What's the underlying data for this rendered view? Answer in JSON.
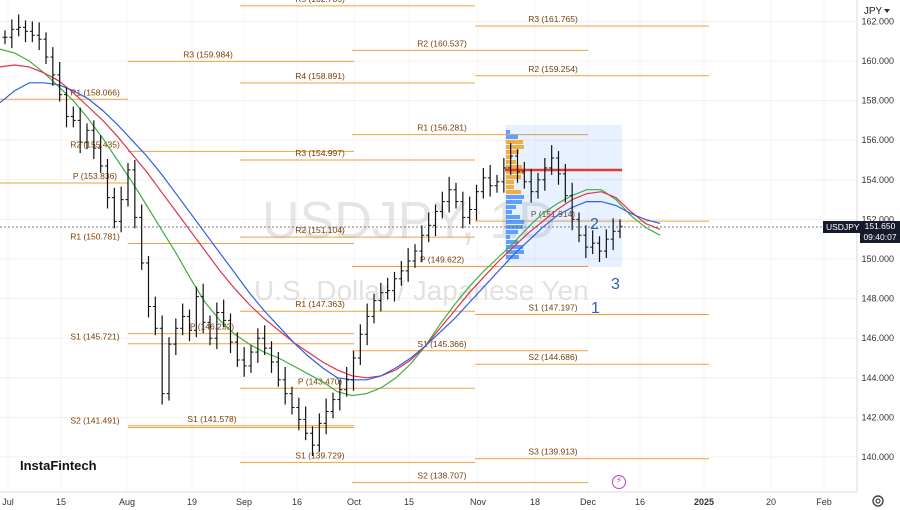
{
  "header": {
    "currency": "JPY"
  },
  "brand": "InstaFintech",
  "watermark": {
    "ticker": "USDJPY, 1D",
    "name": "U.S. Dollar / Japanese Yen"
  },
  "price_tag": {
    "symbol": "USDJPY",
    "price": "151.650",
    "time": "09:40:07"
  },
  "wave_labels": [
    "1",
    "2",
    "3"
  ],
  "flash_icon": "lightning-icon",
  "settings_icon": "gear-icon",
  "colors": {
    "sma_green": "#3fae3f",
    "sma_red": "#e0314a",
    "sma_blue": "#2e5fe0",
    "pivot": "#f0a040",
    "price_line": "#555555",
    "volume_profile_blue": "#3d8bff",
    "volume_profile_orange": "#f39c12",
    "poc": "#e53935",
    "wave_label": "#2b5fb0",
    "price_tag_bg": "#151a2d"
  },
  "chart_data": {
    "type": "line",
    "title": "USDJPY, 1D",
    "subtitle": "U.S. Dollar / Japanese Yen",
    "x_axis_ticks": [
      "Jul",
      "15",
      "Aug",
      "19",
      "Sep",
      "16",
      "Oct",
      "15",
      "Nov",
      "18",
      "Dec",
      "16",
      "2025",
      "20",
      "Feb"
    ],
    "y_axis_ticks": [
      "140.000",
      "142.000",
      "144.000",
      "146.000",
      "148.000",
      "150.000",
      "152.000",
      "154.000",
      "156.000",
      "158.000",
      "160.000",
      "162.000"
    ],
    "ylim": [
      138.4,
      162.8
    ],
    "grid": true,
    "last_price": 151.65,
    "pivot_levels": [
      {
        "label": "R3 (159.984)",
        "value": 159.984
      },
      {
        "label": "R2 (155.435)",
        "value": 155.435
      },
      {
        "label": "R1 (150.781)",
        "value": 150.781
      },
      {
        "label": "S1 (145.721)",
        "value": 145.721
      },
      {
        "label": "S2 (141.491)",
        "value": 141.491
      },
      {
        "label": "R1 (158.066)",
        "value": 158.066
      },
      {
        "label": "P (153.836)",
        "value": 153.836
      },
      {
        "label": "P (146.232)",
        "value": 146.232
      },
      {
        "label": "S1 (141.578)",
        "value": 141.578
      },
      {
        "label": "R5 (162.785)",
        "value": 162.785
      },
      {
        "label": "R4 (158.891)",
        "value": 158.891
      },
      {
        "label": "R3 (154.997)",
        "value": 154.997
      },
      {
        "label": "R2 (151.104)",
        "value": 151.104
      },
      {
        "label": "R1 (147.363)",
        "value": 147.363
      },
      {
        "label": "P (143.470)",
        "value": 143.47
      },
      {
        "label": "S1 (139.729)",
        "value": 139.729
      },
      {
        "label": "R2 (160.537)",
        "value": 160.537
      },
      {
        "label": "R1 (156.281)",
        "value": 156.281
      },
      {
        "label": "P (149.622)",
        "value": 149.622
      },
      {
        "label": "S1 (145.366)",
        "value": 145.366
      },
      {
        "label": "S2 (138.707)",
        "value": 138.707
      },
      {
        "label": "R3 (161.765)",
        "value": 161.765
      },
      {
        "label": "R2 (159.254)",
        "value": 159.254
      },
      {
        "label": "P (151.914)",
        "value": 151.914
      },
      {
        "label": "S1 (147.197)",
        "value": 147.197
      },
      {
        "label": "S2 (144.686)",
        "value": 144.686
      },
      {
        "label": "S3 (139.913)",
        "value": 139.913
      }
    ],
    "series": [
      {
        "name": "USDJPY",
        "values": [
          161.2,
          161.6,
          161.7,
          161.5,
          161.3,
          161.1,
          160.2,
          159.3,
          158.3,
          157.2,
          157.0,
          155.9,
          156.5,
          155.6,
          154.7,
          153.1,
          151.9,
          153.0,
          154.5,
          152.1,
          149.8,
          147.6,
          146.5,
          143.2,
          145.7,
          146.5,
          147.1,
          146.4,
          148.1,
          146.8,
          146.0,
          147.3,
          146.9,
          145.8,
          144.9,
          144.6,
          145.3,
          146.0,
          145.5,
          144.8,
          143.9,
          143.2,
          142.5,
          141.9,
          141.2,
          140.6,
          141.7,
          142.3,
          142.9,
          143.4,
          143.9,
          145.0,
          146.2,
          147.1,
          147.9,
          148.3,
          148.4,
          149.0,
          149.4,
          149.9,
          150.4,
          151.2,
          151.7,
          152.4,
          152.9,
          153.5,
          152.9,
          152.1,
          152.5,
          153.4,
          154.1,
          153.7,
          153.9,
          154.6,
          155.2,
          154.4,
          153.9,
          153.4,
          154.0,
          154.6,
          155.1,
          154.3,
          153.2,
          152.0,
          151.2,
          150.6,
          150.8,
          150.4,
          151.0,
          151.4,
          151.65
        ]
      },
      {
        "name": "SMA fast",
        "values": [
          160.6,
          160.4,
          160.0,
          159.4,
          158.7,
          158.0,
          157.1,
          156.1,
          155.0,
          153.9,
          152.7,
          151.5,
          150.3,
          149.0,
          147.8,
          146.9,
          146.2,
          145.7,
          145.3,
          145.0,
          144.6,
          144.2,
          143.8,
          143.3,
          143.1,
          143.2,
          143.5,
          144.0,
          144.7,
          145.6,
          146.7,
          147.7,
          148.6,
          149.4,
          150.1,
          150.8,
          151.6,
          152.3,
          152.8,
          153.2,
          153.5,
          153.5,
          153.0,
          152.2,
          151.6,
          151.2
        ]
      },
      {
        "name": "SMA mid",
        "values": [
          159.7,
          159.8,
          159.7,
          159.4,
          159.0,
          158.4,
          157.7,
          157.0,
          156.2,
          155.3,
          154.4,
          153.4,
          152.4,
          151.4,
          150.4,
          149.4,
          148.5,
          147.7,
          147.0,
          146.4,
          145.8,
          145.3,
          144.8,
          144.4,
          144.1,
          144.0,
          144.1,
          144.4,
          144.9,
          145.6,
          146.5,
          147.4,
          148.3,
          149.1,
          149.9,
          150.6,
          151.3,
          151.9,
          152.5,
          153.0,
          153.3,
          153.4,
          153.1,
          152.4,
          151.8,
          151.5
        ]
      },
      {
        "name": "SMA slow",
        "values": [
          157.9,
          158.5,
          158.9,
          158.9,
          158.8,
          158.5,
          158.1,
          157.5,
          156.8,
          156.0,
          155.2,
          154.3,
          153.3,
          152.3,
          151.3,
          150.3,
          149.3,
          148.3,
          147.4,
          146.6,
          145.8,
          145.1,
          144.5,
          144.0,
          143.9,
          143.9,
          144.1,
          144.5,
          145.0,
          145.6,
          146.3,
          147.0,
          147.8,
          148.6,
          149.4,
          150.2,
          150.9,
          151.6,
          152.2,
          152.6,
          152.9,
          152.9,
          152.7,
          152.3,
          152.0,
          151.8
        ]
      }
    ]
  }
}
